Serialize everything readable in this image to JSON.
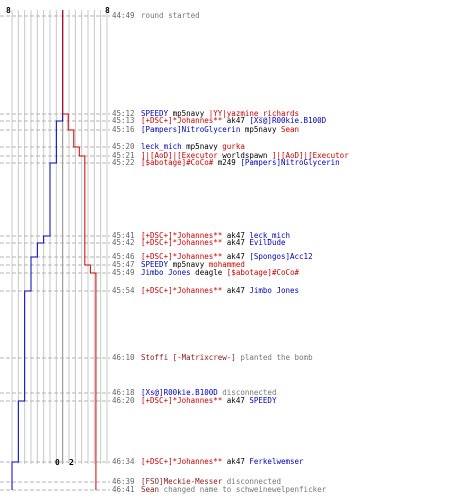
{
  "score": {
    "top_left": "8",
    "top_right": "8",
    "bottom_left": "0",
    "bottom_right": "2"
  },
  "colors": {
    "ct": "#0000bb",
    "t": "#cc0000",
    "weapon": "#000000",
    "grid": "#c8c8c8",
    "dash": "#b5b5b5",
    "event": "#777777",
    "time": "#666666"
  },
  "events": [
    {
      "time": "44:49",
      "parts": [
        {
          "t": "round started",
          "c": "grey"
        }
      ]
    },
    {
      "time": "45:12",
      "parts": [
        {
          "t": "SPEEDY",
          "c": "blue"
        },
        {
          "t": " mp5navy ",
          "c": "blk"
        },
        {
          "t": "|YY|yazmine_richards",
          "c": "red"
        }
      ]
    },
    {
      "time": "45:13",
      "parts": [
        {
          "t": "[+DSC+]*Johannes**",
          "c": "red"
        },
        {
          "t": " ak47 ",
          "c": "blk"
        },
        {
          "t": "[Xs@]R00kie.B100D",
          "c": "blue"
        }
      ]
    },
    {
      "time": "45:16",
      "parts": [
        {
          "t": "[Pampers]NitroGlycerin",
          "c": "blue"
        },
        {
          "t": " mp5navy ",
          "c": "blk"
        },
        {
          "t": "Sean",
          "c": "red"
        }
      ]
    },
    {
      "time": "45:20",
      "parts": [
        {
          "t": "leck_mich",
          "c": "blue"
        },
        {
          "t": " mp5navy ",
          "c": "blk"
        },
        {
          "t": "gurka",
          "c": "red"
        }
      ]
    },
    {
      "time": "45:21",
      "parts": [
        {
          "t": "]|[AoD]|[Executor",
          "c": "red"
        },
        {
          "t": " worldspawn ",
          "c": "blk"
        },
        {
          "t": "]|[AoD]|[Executor",
          "c": "red"
        }
      ]
    },
    {
      "time": "45:22",
      "parts": [
        {
          "t": "[$abotage]#CoCo#",
          "c": "red"
        },
        {
          "t": " m249 ",
          "c": "blk"
        },
        {
          "t": "[Pampers]NitroGlycerin",
          "c": "blue"
        }
      ]
    },
    {
      "time": "45:41",
      "parts": [
        {
          "t": "[+DSC+]*Johannes**",
          "c": "red"
        },
        {
          "t": " ak47 ",
          "c": "blk"
        },
        {
          "t": "leck_mich",
          "c": "blue"
        }
      ]
    },
    {
      "time": "45:42",
      "parts": [
        {
          "t": "[+DSC+]*Johannes**",
          "c": "red"
        },
        {
          "t": " ak47 ",
          "c": "blk"
        },
        {
          "t": "EvilDude",
          "c": "blue"
        }
      ]
    },
    {
      "time": "45:46",
      "parts": [
        {
          "t": "[+DSC+]*Johannes**",
          "c": "red"
        },
        {
          "t": " ak47 ",
          "c": "blk"
        },
        {
          "t": "[Spongos]Acc12",
          "c": "blue"
        }
      ]
    },
    {
      "time": "45:47",
      "parts": [
        {
          "t": "SPEEDY",
          "c": "blue"
        },
        {
          "t": " mp5navy ",
          "c": "blk"
        },
        {
          "t": "mohammed",
          "c": "red"
        }
      ]
    },
    {
      "time": "45:49",
      "parts": [
        {
          "t": "Jimbo Jones",
          "c": "blue"
        },
        {
          "t": " deagle ",
          "c": "blk"
        },
        {
          "t": "[$abotage]#CoCo#",
          "c": "red"
        }
      ]
    },
    {
      "time": "45:54",
      "parts": [
        {
          "t": "[+DSC+]*Johannes**",
          "c": "red"
        },
        {
          "t": " ak47 ",
          "c": "blk"
        },
        {
          "t": "Jimbo Jones",
          "c": "blue"
        }
      ]
    },
    {
      "time": "46:10",
      "parts": [
        {
          "t": "Stoffi [-Matrixcrew-]",
          "c": "mar"
        },
        {
          "t": " planted the bomb",
          "c": "grey"
        }
      ]
    },
    {
      "time": "46:18",
      "parts": [
        {
          "t": "[Xs@]R00kie.B100D",
          "c": "blue"
        },
        {
          "t": " disconnected",
          "c": "grey"
        }
      ]
    },
    {
      "time": "46:20",
      "parts": [
        {
          "t": "[+DSC+]*Johannes**",
          "c": "red"
        },
        {
          "t": " ak47 ",
          "c": "blk"
        },
        {
          "t": "SPEEDY",
          "c": "blue"
        }
      ]
    },
    {
      "time": "46:34",
      "parts": [
        {
          "t": "[+DSC+]*Johannes**",
          "c": "red"
        },
        {
          "t": " ak47 ",
          "c": "blk"
        },
        {
          "t": "Ferkelwemser",
          "c": "blue"
        }
      ]
    },
    {
      "time": "46:39",
      "parts": [
        {
          "t": "[FSO]Meckie-Messer",
          "c": "mar"
        },
        {
          "t": " disconnected",
          "c": "grey"
        }
      ]
    },
    {
      "time": "46:41",
      "parts": [
        {
          "t": "Sean",
          "c": "mar"
        },
        {
          "t": " changed name to schweinewelpenficker",
          "c": "grey"
        }
      ]
    }
  ],
  "chart_data": {
    "type": "line",
    "x_ticks": 16,
    "series": [
      {
        "key": "ct",
        "values": [
          8,
          8,
          7,
          7,
          7,
          7,
          6,
          5,
          4,
          3,
          3,
          3,
          2,
          2,
          2,
          1,
          0,
          0,
          0
        ]
      },
      {
        "key": "t",
        "values": [
          8,
          7,
          7,
          6,
          5,
          4,
          4,
          4,
          4,
          4,
          3,
          2,
          2,
          2,
          2,
          2,
          2,
          2,
          2
        ]
      }
    ]
  }
}
